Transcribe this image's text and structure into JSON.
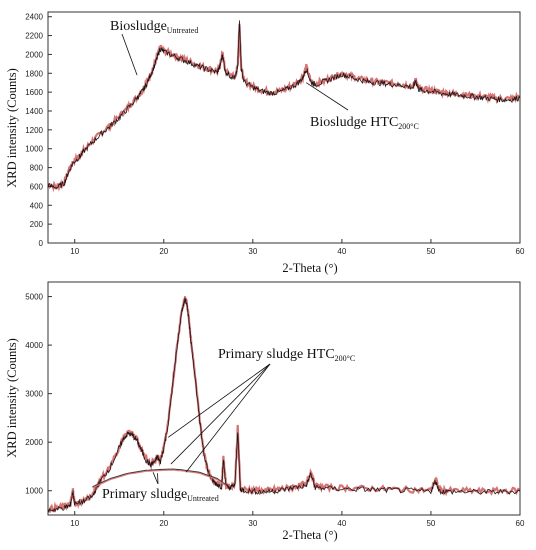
{
  "chart_data": [
    {
      "type": "line",
      "title": "",
      "xlabel": "2-Theta (°)",
      "ylabel": "XRD intensity (Counts)",
      "xlim": [
        7,
        60
      ],
      "ylim": [
        0,
        2450
      ],
      "xticks": [
        10,
        20,
        30,
        40,
        50,
        60
      ],
      "yticks": [
        0,
        200,
        400,
        600,
        800,
        1000,
        1200,
        1400,
        1600,
        1800,
        2000,
        2200,
        2400
      ],
      "grid": false,
      "legend": "none",
      "annotations": [
        {
          "text": "Biosludge",
          "sub": "Untreated",
          "target": [
            17,
            1780
          ]
        },
        {
          "text": "Biosludge HTC",
          "sub": "200°C",
          "target": [
            36,
            1700
          ]
        }
      ],
      "series": [
        {
          "color": "#b40000",
          "x": [
            7,
            8,
            8.8,
            9.3,
            9.8,
            10.5,
            11,
            12,
            13,
            14,
            15,
            16,
            17,
            17.5,
            18,
            18.5,
            19,
            19.3,
            19.6,
            20,
            21,
            22,
            23,
            24,
            25,
            26,
            26.3,
            26.6,
            26.9,
            27.5,
            28,
            28.3,
            28.5,
            28.7,
            29,
            30,
            31,
            32,
            33,
            34,
            35,
            35.6,
            36,
            36.5,
            37,
            38,
            39,
            40,
            41,
            42,
            43,
            44,
            45,
            46,
            47,
            48,
            48.3,
            48.6,
            49,
            50,
            51,
            52,
            53,
            54,
            55,
            56,
            57,
            58,
            59,
            60
          ],
          "values": [
            620,
            600,
            640,
            760,
            860,
            920,
            980,
            1080,
            1170,
            1250,
            1340,
            1440,
            1550,
            1610,
            1680,
            1790,
            1900,
            1990,
            2080,
            2040,
            2000,
            1960,
            1920,
            1880,
            1850,
            1820,
            1880,
            2010,
            1830,
            1780,
            1760,
            1880,
            2320,
            1860,
            1720,
            1660,
            1620,
            1600,
            1610,
            1650,
            1700,
            1760,
            1870,
            1720,
            1690,
            1720,
            1760,
            1800,
            1770,
            1740,
            1720,
            1710,
            1700,
            1690,
            1680,
            1660,
            1740,
            1640,
            1630,
            1620,
            1600,
            1590,
            1580,
            1570,
            1560,
            1550,
            1540,
            1530,
            1530,
            1550
          ]
        },
        {
          "color": "#111111",
          "x": [
            7,
            8,
            8.8,
            9.3,
            9.8,
            10.5,
            11,
            12,
            13,
            14,
            15,
            16,
            17,
            17.5,
            18,
            18.5,
            19,
            19.3,
            19.6,
            20,
            21,
            22,
            23,
            24,
            25,
            26,
            26.3,
            26.6,
            26.9,
            27.5,
            28,
            28.3,
            28.5,
            28.7,
            29,
            30,
            31,
            32,
            33,
            34,
            35,
            35.6,
            36,
            36.5,
            37,
            38,
            39,
            40,
            41,
            42,
            43,
            44,
            45,
            46,
            47,
            48,
            48.3,
            48.6,
            49,
            50,
            51,
            52,
            53,
            54,
            55,
            56,
            57,
            58,
            59,
            60
          ],
          "values": [
            610,
            590,
            630,
            750,
            850,
            910,
            970,
            1070,
            1160,
            1240,
            1330,
            1430,
            1540,
            1600,
            1670,
            1780,
            1890,
            1980,
            2060,
            2030,
            1990,
            1950,
            1910,
            1870,
            1840,
            1810,
            1870,
            2000,
            1820,
            1770,
            1750,
            1860,
            2380,
            1850,
            1710,
            1650,
            1610,
            1590,
            1600,
            1640,
            1690,
            1750,
            1850,
            1710,
            1680,
            1710,
            1750,
            1790,
            1760,
            1730,
            1710,
            1700,
            1690,
            1680,
            1670,
            1650,
            1720,
            1630,
            1620,
            1610,
            1590,
            1580,
            1570,
            1560,
            1550,
            1540,
            1530,
            1520,
            1520,
            1540
          ]
        }
      ]
    },
    {
      "type": "line",
      "title": "",
      "xlabel": "2-Theta (°)",
      "ylabel": "XRD intensity (Counts)",
      "xlim": [
        7,
        60
      ],
      "ylim": [
        500,
        5300
      ],
      "xticks": [
        10,
        20,
        30,
        40,
        50,
        60
      ],
      "yticks": [
        1000,
        2000,
        3000,
        4000,
        5000
      ],
      "grid": false,
      "legend": "none",
      "annotations": [
        {
          "text": "Primary sludge HTC",
          "sub": "200°C",
          "targets": [
            [
              20.5,
              2100
            ],
            [
              22.5,
              1380
            ],
            [
              20.8,
              1550
            ]
          ]
        },
        {
          "text": "Primary sludge",
          "sub": "Untreated",
          "targets": [
            [
              18.8,
              1380
            ],
            [
              19.3,
              1360
            ]
          ]
        }
      ],
      "series": [
        {
          "color": "#b40000",
          "x": [
            7,
            8,
            9,
            9.5,
            9.8,
            10,
            11,
            12,
            12.5,
            13,
            14,
            15,
            15.5,
            16,
            16.5,
            17,
            17.5,
            18,
            18.5,
            19,
            19.3,
            19.6,
            20,
            20.5,
            21,
            21.5,
            22,
            22.4,
            22.6,
            22.8,
            23,
            23.5,
            24,
            24.5,
            25,
            25.5,
            26,
            26.5,
            26.7,
            27,
            27.5,
            28,
            28.3,
            28.6,
            29,
            30,
            31,
            32,
            33,
            34,
            35,
            36,
            36.5,
            37,
            38,
            40,
            42,
            44,
            46,
            48,
            50,
            50.5,
            51,
            52,
            54,
            56,
            58,
            60
          ],
          "values": [
            620,
            640,
            680,
            710,
            1020,
            730,
            800,
            900,
            1100,
            1250,
            1500,
            1900,
            2100,
            2200,
            2160,
            2050,
            1850,
            1650,
            1550,
            1620,
            1720,
            1600,
            1900,
            2400,
            3200,
            4000,
            4700,
            4980,
            4850,
            4600,
            4200,
            3400,
            2500,
            1800,
            1400,
            1220,
            1150,
            1100,
            1700,
            1100,
            1080,
            1150,
            2300,
            1050,
            1030,
            1010,
            1000,
            1010,
            1030,
            1060,
            1100,
            1120,
            1400,
            1090,
            1070,
            1060,
            1050,
            1040,
            1030,
            1020,
            1010,
            1240,
            1010,
            1000,
            1000,
            990,
            1000,
            1010
          ]
        },
        {
          "color": "#111111",
          "x": [
            7,
            8,
            9,
            9.5,
            9.8,
            10,
            11,
            12,
            12.5,
            13,
            14,
            15,
            15.5,
            16,
            16.5,
            17,
            17.5,
            18,
            18.5,
            19,
            19.3,
            19.6,
            20,
            20.5,
            21,
            21.5,
            22,
            22.4,
            22.6,
            22.8,
            23,
            23.5,
            24,
            24.5,
            25,
            25.5,
            26,
            26.5,
            26.7,
            27,
            27.5,
            28,
            28.3,
            28.6,
            29,
            30,
            31,
            32,
            33,
            34,
            35,
            36,
            36.5,
            37,
            38,
            40,
            42,
            44,
            46,
            48,
            50,
            50.5,
            51,
            52,
            54,
            56,
            58,
            60
          ],
          "values": [
            600,
            620,
            660,
            690,
            980,
            710,
            780,
            880,
            1080,
            1230,
            1480,
            1880,
            2080,
            2180,
            2140,
            2030,
            1830,
            1630,
            1530,
            1600,
            1700,
            1580,
            1880,
            2380,
            3180,
            3980,
            4680,
            4950,
            4820,
            4580,
            4180,
            3380,
            2480,
            1780,
            1380,
            1200,
            1130,
            1080,
            1650,
            1080,
            1060,
            1130,
            2250,
            1030,
            1010,
            990,
            980,
            990,
            1010,
            1040,
            1080,
            1100,
            1350,
            1070,
            1050,
            1040,
            1030,
            1020,
            1010,
            1000,
            990,
            1200,
            990,
            980,
            980,
            970,
            980,
            990
          ]
        },
        {
          "color": "#333333",
          "x": [
            12,
            14,
            16,
            18,
            20,
            21,
            22,
            24,
            26,
            27
          ],
          "values": [
            1080,
            1250,
            1360,
            1420,
            1440,
            1445,
            1430,
            1380,
            1250,
            1120
          ]
        },
        {
          "color": "#d97777",
          "x": [
            12,
            14,
            16,
            18,
            20,
            21,
            22,
            24,
            26,
            27
          ],
          "values": [
            1060,
            1230,
            1340,
            1400,
            1420,
            1425,
            1410,
            1360,
            1230,
            1100
          ]
        }
      ]
    }
  ],
  "labels": {
    "top_ylabel": "XRD intensity (Counts)",
    "top_xlabel": "2-Theta (°)",
    "bottom_ylabel": "XRD intensity (Counts)",
    "bottom_xlabel": "2-Theta (°)",
    "bio_untreated_main": "Biosludge",
    "bio_untreated_sub": "Untreated",
    "bio_htc_main": "Biosludge HTC",
    "bio_htc_sub": "200°C",
    "ps_htc_main": "Primary sludge HTC",
    "ps_htc_sub": "200°C",
    "ps_untreated_main": "Primary sludge",
    "ps_untreated_sub": "Untreated"
  }
}
